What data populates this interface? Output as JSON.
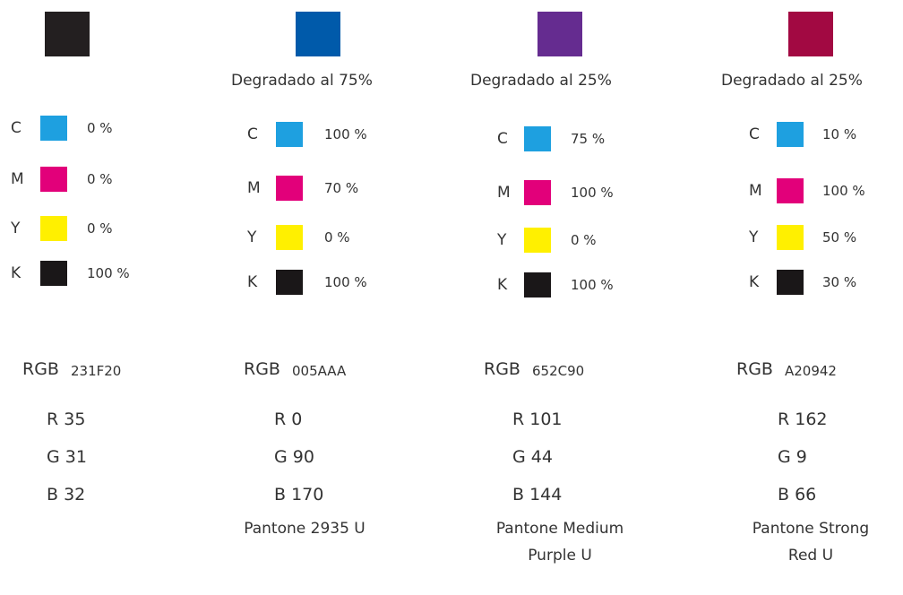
{
  "columns": [
    {
      "hex": "231F20",
      "rgb_label": "RGB",
      "cmyk": [
        {
          "letter": "C",
          "value": "0 %"
        },
        {
          "letter": "M",
          "value": "0 %"
        },
        {
          "letter": "Y",
          "value": "0 %"
        },
        {
          "letter": "K",
          "value": "100 %"
        }
      ],
      "rgb": [
        "R 35",
        "G 31",
        "B 32"
      ]
    },
    {
      "hex": "005AAA",
      "rgb_label": "RGB",
      "tint": "Degradado al 75%",
      "cmyk": [
        {
          "letter": "C",
          "value": "100 %"
        },
        {
          "letter": "M",
          "value": "70 %"
        },
        {
          "letter": "Y",
          "value": "0 %"
        },
        {
          "letter": "K",
          "value": "100 %"
        }
      ],
      "rgb": [
        "R 0",
        "G 90",
        "B 170"
      ],
      "pantone": [
        "Pantone 2935 U"
      ]
    },
    {
      "hex": "652C90",
      "rgb_label": "RGB",
      "tint": "Degradado al 25%",
      "cmyk": [
        {
          "letter": "C",
          "value": "75 %"
        },
        {
          "letter": "M",
          "value": "100 %"
        },
        {
          "letter": "Y",
          "value": "0 %"
        },
        {
          "letter": "K",
          "value": "100 %"
        }
      ],
      "rgb": [
        "R 101",
        "G 44",
        "B 144"
      ],
      "pantone": [
        "Pantone Medium",
        "Purple U"
      ]
    },
    {
      "hex": "A20942",
      "rgb_label": "RGB",
      "tint": "Degradado al 25%",
      "cmyk": [
        {
          "letter": "C",
          "value": "10 %"
        },
        {
          "letter": "M",
          "value": "100 %"
        },
        {
          "letter": "Y",
          "value": "50 %"
        },
        {
          "letter": "K",
          "value": "30 %"
        }
      ],
      "rgb": [
        "R 162",
        "G 9",
        "B 66"
      ],
      "pantone": [
        "Pantone Strong",
        "Red U"
      ]
    }
  ]
}
